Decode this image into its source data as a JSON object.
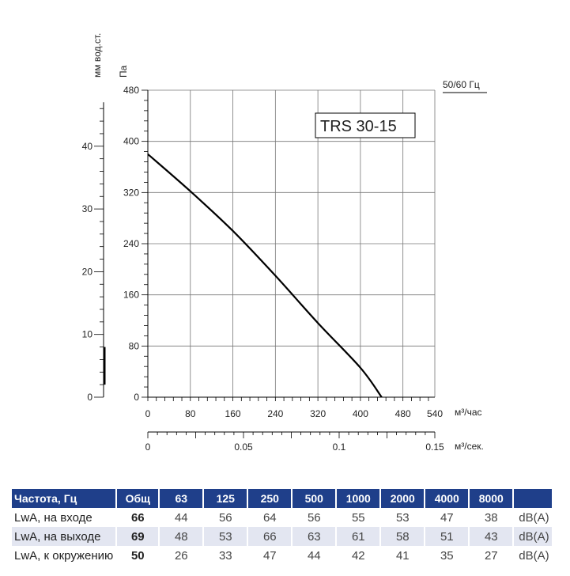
{
  "chart_data": {
    "type": "line",
    "title": "TRS 30-15",
    "frequency_note": "50/60 Гц",
    "y_left_label": "Па",
    "y_left_ticks": [
      0,
      80,
      160,
      240,
      320,
      400,
      480
    ],
    "ylim": [
      0,
      480
    ],
    "y_secondary_label": "мм вод.ст.",
    "y_secondary_ticks": [
      0,
      10,
      20,
      30,
      40
    ],
    "xlabel": "м³/час",
    "x_ticks": [
      0,
      80,
      160,
      240,
      320,
      400,
      480,
      540
    ],
    "xlim": [
      0,
      540
    ],
    "x_secondary_label": "м³/сек.",
    "x_secondary_ticks": [
      "0",
      "0.05",
      "0.1",
      "0.15"
    ],
    "x_secondary_values": [
      0,
      0.05,
      0.1,
      0.15
    ],
    "grid": true,
    "series": [
      {
        "x": [
          0,
          80,
          160,
          240,
          320,
          400,
          440
        ],
        "y": [
          380,
          322,
          260,
          190,
          116,
          46,
          0
        ]
      }
    ]
  },
  "noise_table": {
    "headers": [
      "Частота, Гц",
      "Общ",
      "63",
      "125",
      "250",
      "500",
      "1000",
      "2000",
      "4000",
      "8000"
    ],
    "rows": [
      {
        "label": "LwA, на входе",
        "total": "66",
        "values": [
          "44",
          "56",
          "64",
          "56",
          "55",
          "53",
          "47",
          "38"
        ],
        "unit": "dB(A)"
      },
      {
        "label": "LwA, на выходе",
        "total": "69",
        "values": [
          "48",
          "53",
          "66",
          "63",
          "61",
          "58",
          "51",
          "43"
        ],
        "unit": "dB(A)"
      },
      {
        "label": "LwA, к окружению",
        "total": "50",
        "values": [
          "26",
          "33",
          "47",
          "44",
          "42",
          "41",
          "35",
          "27"
        ],
        "unit": "dB(A)"
      }
    ]
  }
}
